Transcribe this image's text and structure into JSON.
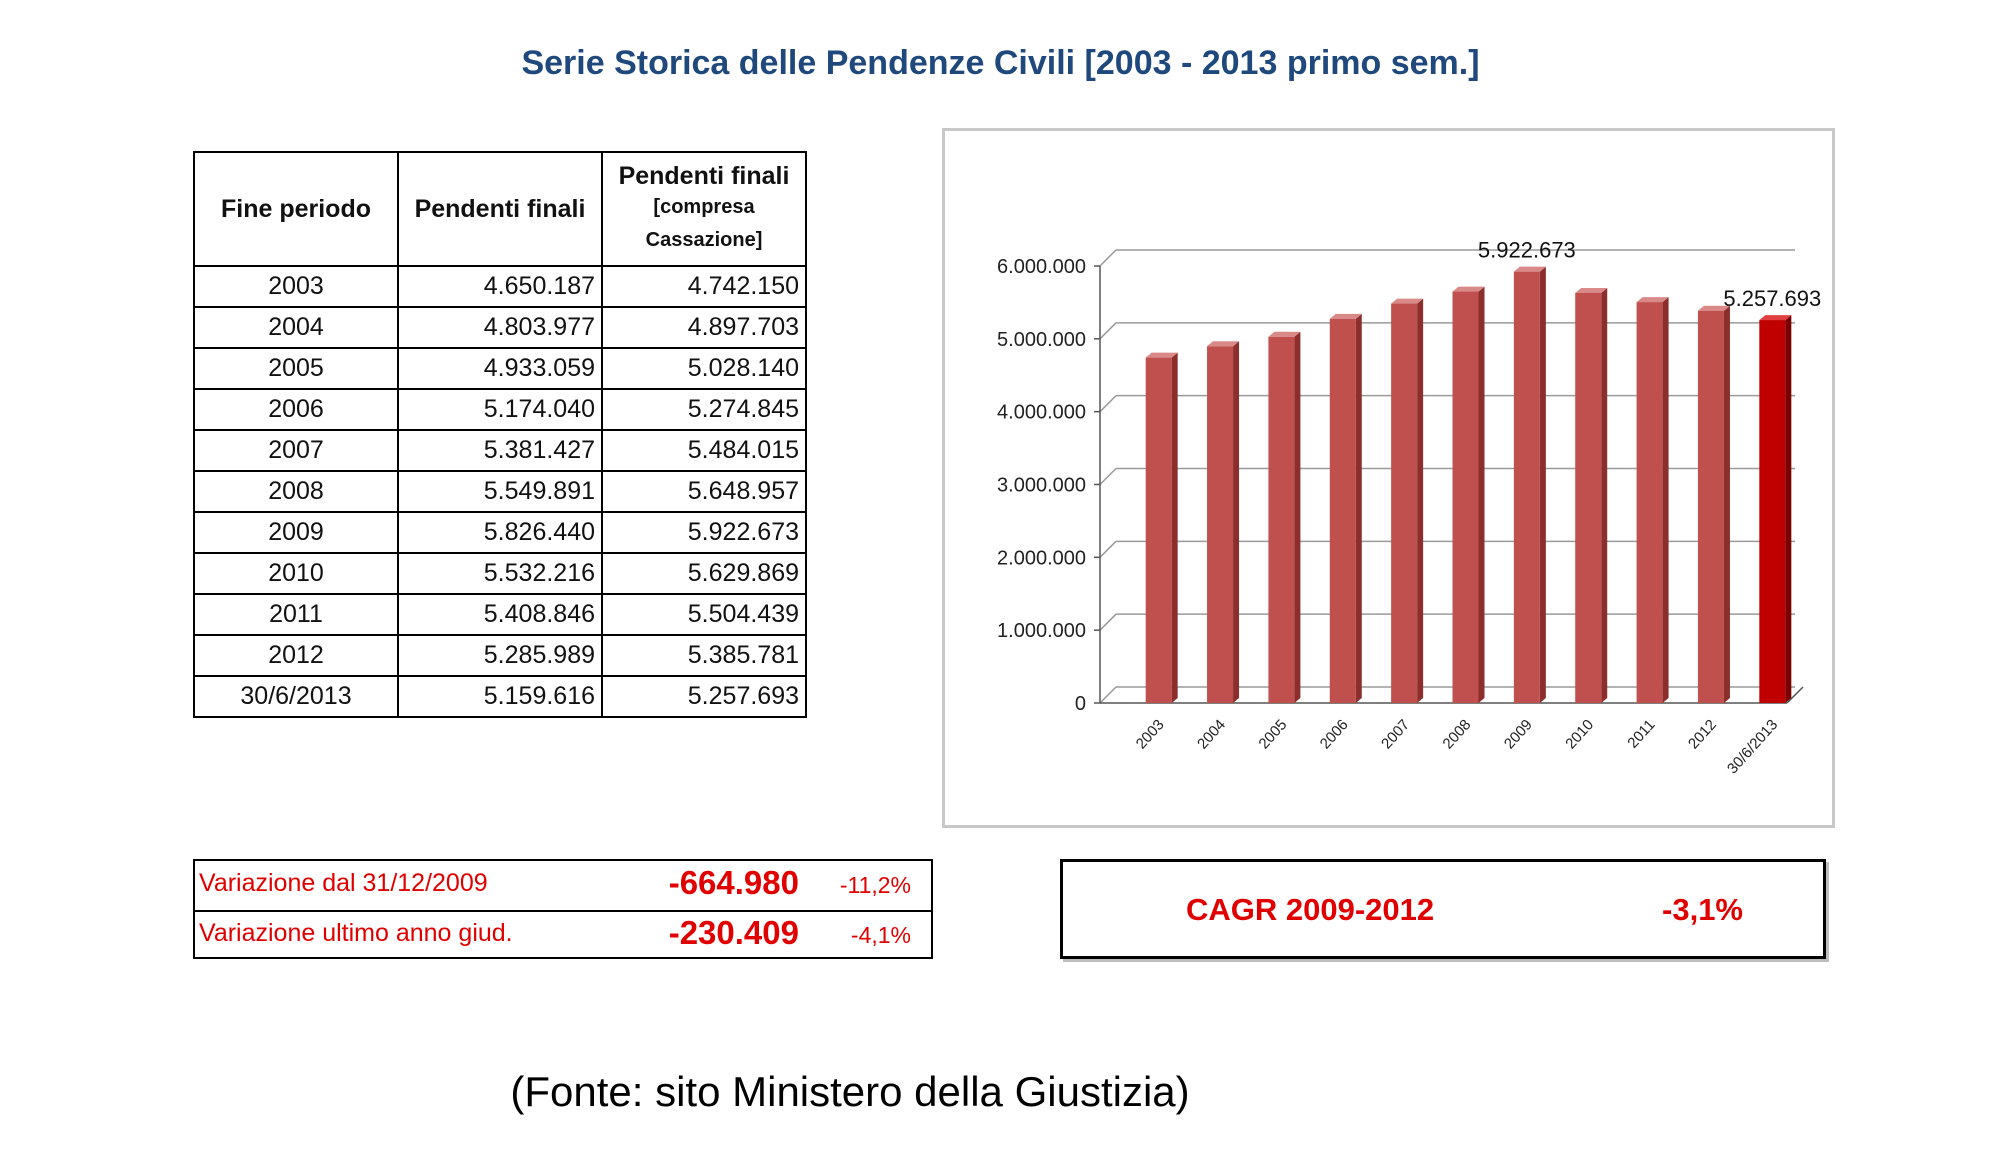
{
  "title": "Serie Storica delle Pendenze Civili [2003 - 2013 primo sem.]",
  "table": {
    "headers": {
      "col1": "Fine periodo",
      "col2": "Pendenti finali",
      "col3_main": "Pendenti finali",
      "col3_sub": "[compresa Cassazione]"
    },
    "rows": [
      {
        "period": "2003",
        "pendenti": "4.650.187",
        "pendenti_cass": "4.742.150"
      },
      {
        "period": "2004",
        "pendenti": "4.803.977",
        "pendenti_cass": "4.897.703"
      },
      {
        "period": "2005",
        "pendenti": "4.933.059",
        "pendenti_cass": "5.028.140"
      },
      {
        "period": "2006",
        "pendenti": "5.174.040",
        "pendenti_cass": "5.274.845"
      },
      {
        "period": "2007",
        "pendenti": "5.381.427",
        "pendenti_cass": "5.484.015"
      },
      {
        "period": "2008",
        "pendenti": "5.549.891",
        "pendenti_cass": "5.648.957"
      },
      {
        "period": "2009",
        "pendenti": "5.826.440",
        "pendenti_cass": "5.922.673"
      },
      {
        "period": "2010",
        "pendenti": "5.532.216",
        "pendenti_cass": "5.629.869"
      },
      {
        "period": "2011",
        "pendenti": "5.408.846",
        "pendenti_cass": "5.504.439"
      },
      {
        "period": "2012",
        "pendenti": "5.285.989",
        "pendenti_cass": "5.385.781"
      },
      {
        "period": "30/6/2013",
        "pendenti": "5.159.616",
        "pendenti_cass": "5.257.693"
      }
    ]
  },
  "chart_data": {
    "type": "bar",
    "categories": [
      "2003",
      "2004",
      "2005",
      "2006",
      "2007",
      "2008",
      "2009",
      "2010",
      "2011",
      "2012",
      "30/6/2013"
    ],
    "values": [
      4742150,
      4897703,
      5028140,
      5274845,
      5484015,
      5648957,
      5922673,
      5629869,
      5504439,
      5385781,
      5257693
    ],
    "ylim": [
      0,
      6000000
    ],
    "yticks": [
      0,
      1000000,
      2000000,
      3000000,
      4000000,
      5000000,
      6000000
    ],
    "ytick_labels": [
      "0",
      "1.000.000",
      "2.000.000",
      "3.000.000",
      "4.000.000",
      "5.000.000",
      "6.000.000"
    ],
    "annotations": [
      {
        "category": "2009",
        "text": "5.922.673"
      },
      {
        "category": "30/6/2013",
        "text": "5.257.693"
      }
    ],
    "highlight_category": "30/6/2013",
    "grid": true,
    "colors": {
      "bar": "#c0504d",
      "bar_highlight": "#c00000"
    }
  },
  "variation": {
    "rows": [
      {
        "label": "Variazione dal 31/12/2009",
        "value": "-664.980",
        "pct": "-11,2%"
      },
      {
        "label": "Variazione ultimo anno giud.",
        "value": "-230.409",
        "pct": "-4,1%"
      }
    ]
  },
  "cagr": {
    "label": "CAGR 2009-2012",
    "value": "-3,1%"
  },
  "source": "(Fonte: sito Ministero della Giustizia)",
  "colors": {
    "title": "#1f497d",
    "accent_red": "#e00000"
  }
}
